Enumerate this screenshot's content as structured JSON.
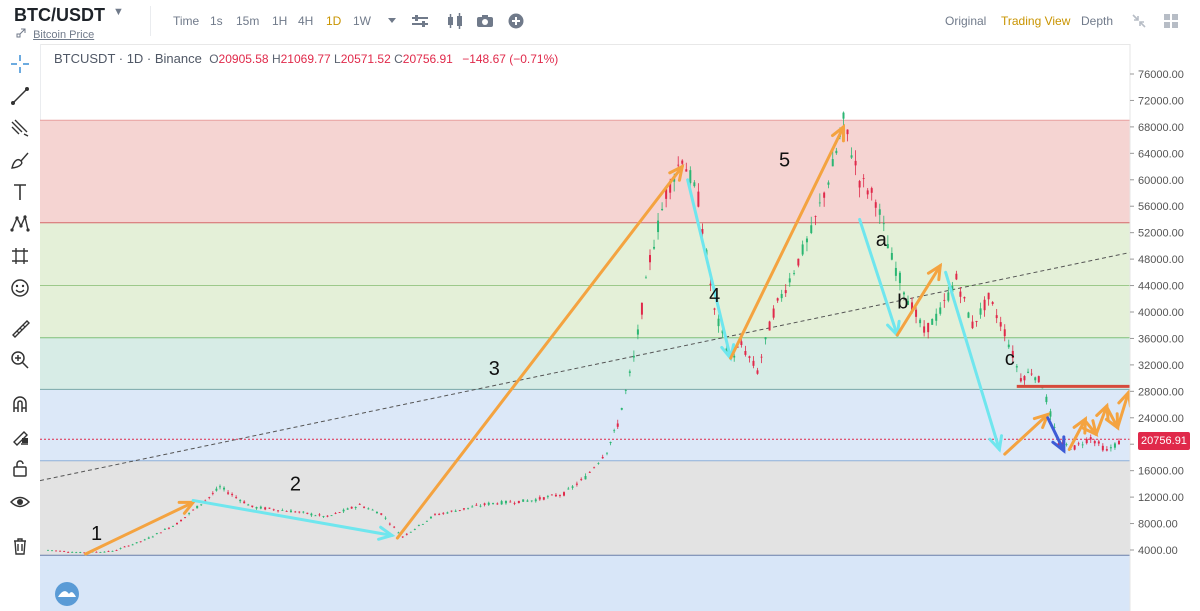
{
  "header": {
    "pair": "BTC/USDT",
    "subtitle": "Bitcoin Price",
    "timeframes": [
      "Time",
      "1s",
      "15m",
      "1H",
      "4H",
      "1D",
      "1W"
    ],
    "active_timeframe": "1D",
    "views": [
      "Original",
      "Trading View",
      "Depth"
    ],
    "active_view": "Trading View"
  },
  "sidebar": {
    "tools": [
      "crosshair-icon",
      "trendline-icon",
      "pitchfork-icon",
      "brush-icon",
      "text-icon",
      "pattern-icon",
      "measure-icon",
      "emoji-icon",
      "ruler-icon",
      "zoom-icon",
      "magnet-icon",
      "lock-draw-icon",
      "lock-icon",
      "eye-icon",
      "trash-icon"
    ]
  },
  "ohlc": {
    "symbol": "BTCUSDT · 1D · Binance",
    "o_label": "O",
    "o": "20905.58",
    "h_label": "H",
    "h": "21069.77",
    "l_label": "L",
    "l": "20571.52",
    "c_label": "C",
    "c": "20756.91",
    "change": "−148.67 (−0.71%)"
  },
  "last_price": "20756.91",
  "colors": {
    "accent": "#c99400",
    "down": "#e0294a",
    "up": "#2bb673",
    "wave_up": "#f4a340",
    "wave_down": "#6fe6ee"
  },
  "chart_data": {
    "type": "line",
    "title": "",
    "xlabel": "",
    "ylabel": "",
    "ylim": [
      0,
      78000
    ],
    "y_ticks": [
      "76000.00",
      "72000.00",
      "68000.00",
      "64000.00",
      "60000.00",
      "56000.00",
      "52000.00",
      "48000.00",
      "44000.00",
      "40000.00",
      "36000.00",
      "32000.00",
      "28000.00",
      "24000.00",
      "20000.00",
      "16000.00",
      "12000.00",
      "8000.00",
      "4000.00"
    ],
    "fib_levels": [
      {
        "value": 69000,
        "color": "#e8a0a0"
      },
      {
        "value": 53500,
        "color": "#d46a6a"
      },
      {
        "value": 44000,
        "color": "#9cc98a"
      },
      {
        "value": 36100,
        "color": "#7fbf7a"
      },
      {
        "value": 28300,
        "color": "#7aa8a8"
      },
      {
        "value": 17500,
        "color": "#8fb0d8"
      },
      {
        "value": 3200,
        "color": "#6a7fa8"
      }
    ],
    "zones": [
      {
        "from": 53500,
        "to": 69000,
        "color": "#f5d4d2"
      },
      {
        "from": 36100,
        "to": 53500,
        "color": "#e4f0d8"
      },
      {
        "from": 28300,
        "to": 36100,
        "color": "#d7ece6"
      },
      {
        "from": 17500,
        "to": 28300,
        "color": "#dce8f8"
      },
      {
        "from": 3200,
        "to": 17500,
        "color": "#e3e3e3"
      },
      {
        "from": -10000,
        "to": 3200,
        "color": "#d8e6f8"
      }
    ],
    "price_path": [
      [
        0.0,
        4000
      ],
      [
        0.03,
        3600
      ],
      [
        0.06,
        3800
      ],
      [
        0.09,
        5500
      ],
      [
        0.12,
        8000
      ],
      [
        0.15,
        12000
      ],
      [
        0.16,
        13500
      ],
      [
        0.19,
        10500
      ],
      [
        0.23,
        9800
      ],
      [
        0.26,
        9000
      ],
      [
        0.29,
        10800
      ],
      [
        0.31,
        9500
      ],
      [
        0.33,
        6000
      ],
      [
        0.36,
        9300
      ],
      [
        0.41,
        11000
      ],
      [
        0.45,
        11500
      ],
      [
        0.48,
        12500
      ],
      [
        0.5,
        15000
      ],
      [
        0.52,
        19000
      ],
      [
        0.53,
        23000
      ],
      [
        0.545,
        33000
      ],
      [
        0.56,
        48000
      ],
      [
        0.575,
        58000
      ],
      [
        0.59,
        63500
      ],
      [
        0.605,
        57000
      ],
      [
        0.62,
        40000
      ],
      [
        0.635,
        33000
      ],
      [
        0.645,
        35000
      ],
      [
        0.66,
        31000
      ],
      [
        0.675,
        40000
      ],
      [
        0.69,
        45000
      ],
      [
        0.71,
        52000
      ],
      [
        0.73,
        62000
      ],
      [
        0.74,
        68800
      ],
      [
        0.755,
        60000
      ],
      [
        0.77,
        57000
      ],
      [
        0.785,
        48000
      ],
      [
        0.8,
        42000
      ],
      [
        0.815,
        37000
      ],
      [
        0.83,
        40000
      ],
      [
        0.845,
        45000
      ],
      [
        0.86,
        38000
      ],
      [
        0.875,
        42000
      ],
      [
        0.89,
        37000
      ],
      [
        0.905,
        30000
      ],
      [
        0.915,
        31000
      ],
      [
        0.925,
        29000
      ],
      [
        0.94,
        20000
      ],
      [
        0.955,
        19500
      ],
      [
        0.97,
        21000
      ],
      [
        0.985,
        19000
      ],
      [
        1.0,
        20700
      ]
    ],
    "trendline": {
      "from": [
        0.0,
        14500
      ],
      "to": [
        1.0,
        49000
      ]
    },
    "wave_labels": [
      {
        "text": "1",
        "pos": [
          0.04,
          5500
        ]
      },
      {
        "text": "2",
        "pos": [
          0.225,
          13000
        ]
      },
      {
        "text": "3",
        "pos": [
          0.41,
          30500
        ]
      },
      {
        "text": "4",
        "pos": [
          0.615,
          41500
        ]
      },
      {
        "text": "5",
        "pos": [
          0.68,
          62000
        ]
      },
      {
        "text": "a",
        "pos": [
          0.77,
          50000
        ]
      },
      {
        "text": "b",
        "pos": [
          0.79,
          40500
        ]
      },
      {
        "text": "c",
        "pos": [
          0.89,
          32000
        ]
      }
    ],
    "arrows": [
      {
        "color": "orange",
        "from": [
          0.035,
          3400
        ],
        "to": [
          0.135,
          11200
        ]
      },
      {
        "color": "cyan",
        "from": [
          0.135,
          11500
        ],
        "to": [
          0.32,
          6200
        ]
      },
      {
        "color": "orange",
        "from": [
          0.325,
          5800
        ],
        "to": [
          0.59,
          62000
        ]
      },
      {
        "color": "cyan",
        "from": [
          0.595,
          60000
        ],
        "to": [
          0.635,
          33000
        ]
      },
      {
        "color": "orange",
        "from": [
          0.635,
          33000
        ],
        "to": [
          0.74,
          68000
        ]
      },
      {
        "color": "cyan",
        "from": [
          0.755,
          54000
        ],
        "to": [
          0.79,
          36500
        ]
      },
      {
        "color": "orange",
        "from": [
          0.79,
          36500
        ],
        "to": [
          0.83,
          47000
        ]
      },
      {
        "color": "cyan",
        "from": [
          0.835,
          46000
        ],
        "to": [
          0.885,
          19200
        ]
      },
      {
        "color": "orange",
        "from": [
          0.89,
          18500
        ],
        "to": [
          0.93,
          24500
        ]
      },
      {
        "color": "blue",
        "from": [
          0.93,
          24000
        ],
        "to": [
          0.945,
          19000
        ]
      },
      {
        "color": "orange",
        "from": [
          0.95,
          19200
        ],
        "to": [
          0.965,
          23800
        ]
      },
      {
        "color": "orange",
        "from": [
          0.965,
          23500
        ],
        "to": [
          0.975,
          21500
        ]
      },
      {
        "color": "orange",
        "from": [
          0.975,
          21500
        ],
        "to": [
          0.985,
          25800
        ]
      },
      {
        "color": "orange",
        "from": [
          0.985,
          25600
        ],
        "to": [
          0.995,
          22500
        ]
      },
      {
        "color": "orange",
        "from": [
          0.995,
          22500
        ],
        "to": [
          1.005,
          27800
        ]
      }
    ],
    "resistance": {
      "from": 0.89,
      "to": 1.0,
      "value": 28300,
      "color": "#d64a3b"
    },
    "last_price": 20756.91
  }
}
